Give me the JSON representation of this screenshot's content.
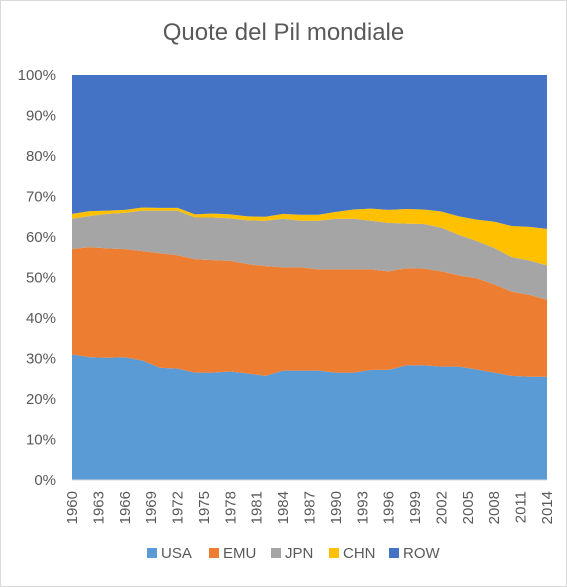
{
  "chart_data": {
    "type": "area",
    "stacked": true,
    "percent": true,
    "title": "Quote del Pil mondiale",
    "xlabel": "",
    "ylabel": "",
    "ylim": [
      0,
      100
    ],
    "y_ticks": [
      "0%",
      "10%",
      "20%",
      "30%",
      "40%",
      "50%",
      "60%",
      "70%",
      "80%",
      "90%",
      "100%"
    ],
    "x_ticks": [
      "1960",
      "1963",
      "1966",
      "1969",
      "1972",
      "1975",
      "1978",
      "1981",
      "1984",
      "1987",
      "1990",
      "1993",
      "1996",
      "1999",
      "2002",
      "2005",
      "2008",
      "2011",
      "2014"
    ],
    "x": [
      1960,
      1962,
      1964,
      1966,
      1968,
      1970,
      1972,
      1974,
      1976,
      1978,
      1980,
      1982,
      1984,
      1986,
      1988,
      1990,
      1992,
      1994,
      1996,
      1998,
      2000,
      2002,
      2004,
      2006,
      2008,
      2010,
      2012,
      2014
    ],
    "legend_position": "bottom",
    "series": [
      {
        "name": "USA",
        "color": "#5B9BD5",
        "values": [
          31,
          30.3,
          30.2,
          30.3,
          29.5,
          27.7,
          27.5,
          26.5,
          26.5,
          26.8,
          26.3,
          25.7,
          27,
          27,
          27,
          26.5,
          26.5,
          27.2,
          27.2,
          28.3,
          28.3,
          28,
          28,
          27.3,
          26.5,
          25.7,
          25.5,
          25.5
        ]
      },
      {
        "name": "EMU",
        "color": "#ED7D31",
        "values": [
          26,
          27.2,
          27,
          26.7,
          27,
          28.3,
          28,
          28,
          27.8,
          27.3,
          27,
          27.1,
          25.5,
          25.5,
          25,
          25.5,
          25.5,
          24.8,
          24.3,
          24,
          23.9,
          23.5,
          22.5,
          22.5,
          21.8,
          20.8,
          20.2,
          19
        ]
      },
      {
        "name": "JPN",
        "color": "#A5A5A5",
        "values": [
          7.5,
          7.7,
          8.5,
          9,
          10,
          10.5,
          11,
          10.3,
          10.5,
          10.5,
          10.8,
          11.2,
          12,
          11.5,
          12,
          12.5,
          12.5,
          12,
          12,
          11,
          11,
          10.8,
          10,
          9.2,
          9,
          8.5,
          8.5,
          8.5
        ]
      },
      {
        "name": "CHN",
        "color": "#FFC000",
        "values": [
          1.2,
          1.2,
          0.8,
          0.7,
          0.8,
          0.7,
          0.7,
          0.8,
          1,
          1,
          1,
          1,
          1.2,
          1.5,
          1.5,
          1.7,
          2.3,
          3,
          3.2,
          3.6,
          3.6,
          4,
          4.6,
          5.3,
          6.5,
          7.7,
          8.3,
          9
        ]
      },
      {
        "name": "ROW",
        "color": "#4472C4",
        "values": [
          34.3,
          33.6,
          33.5,
          33.3,
          32.7,
          32.8,
          32.8,
          34.4,
          34.2,
          34.4,
          34.9,
          35,
          34.3,
          34.5,
          34.5,
          33.8,
          33.2,
          33,
          33.3,
          33.1,
          33.2,
          33.7,
          34.9,
          35.7,
          36.2,
          37.3,
          37.5,
          38
        ]
      }
    ]
  }
}
